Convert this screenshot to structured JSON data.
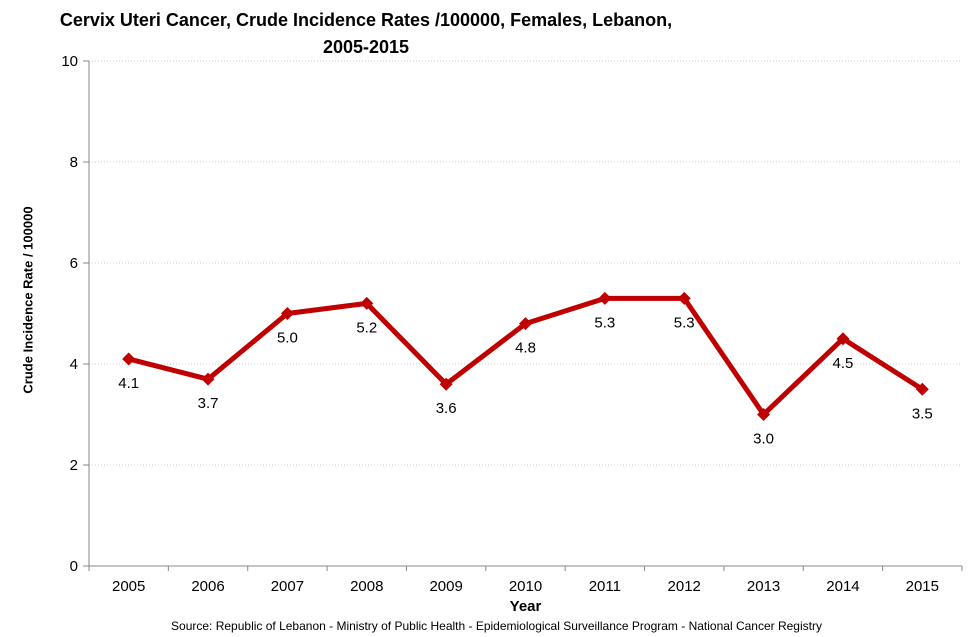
{
  "title": {
    "line1": "Cervix Uteri Cancer, Crude Incidence Rates /100000, Females, Lebanon,",
    "line2": "2005-2015"
  },
  "source": "Source: Republic of Lebanon - Ministry of Public Health - Epidemiological Surveillance Program - National Cancer Registry",
  "chart_data": {
    "type": "line",
    "title": "Cervix Uteri Cancer, Crude Incidence Rates /100000, Females, Lebanon, 2005-2015",
    "categories": [
      "2005",
      "2006",
      "2007",
      "2008",
      "2009",
      "2010",
      "2011",
      "2012",
      "2013",
      "2014",
      "2015"
    ],
    "series": [
      {
        "name": "Crude Incidence Rate",
        "values": [
          4.1,
          3.7,
          5.0,
          5.2,
          3.6,
          4.8,
          5.3,
          5.3,
          3.0,
          4.5,
          3.5
        ],
        "data_labels": [
          "4.1",
          "3.7",
          "5.0",
          "5.2",
          "3.6",
          "4.8",
          "5.3",
          "5.3",
          "3.0",
          "4.5",
          "3.5"
        ]
      }
    ],
    "xlabel": "Year",
    "ylabel": "Crude Incidence Rate / 100000",
    "ylim": [
      0,
      10
    ],
    "yticks": [
      0,
      2,
      4,
      6,
      8,
      10
    ],
    "grid": "horizontal-dotted",
    "legend": "none",
    "marker": "diamond",
    "colors": {
      "line": "#C00000",
      "marker": "#C00000",
      "gridline": "#CCCCCC",
      "axis": "#898989",
      "label": "#000000"
    }
  }
}
